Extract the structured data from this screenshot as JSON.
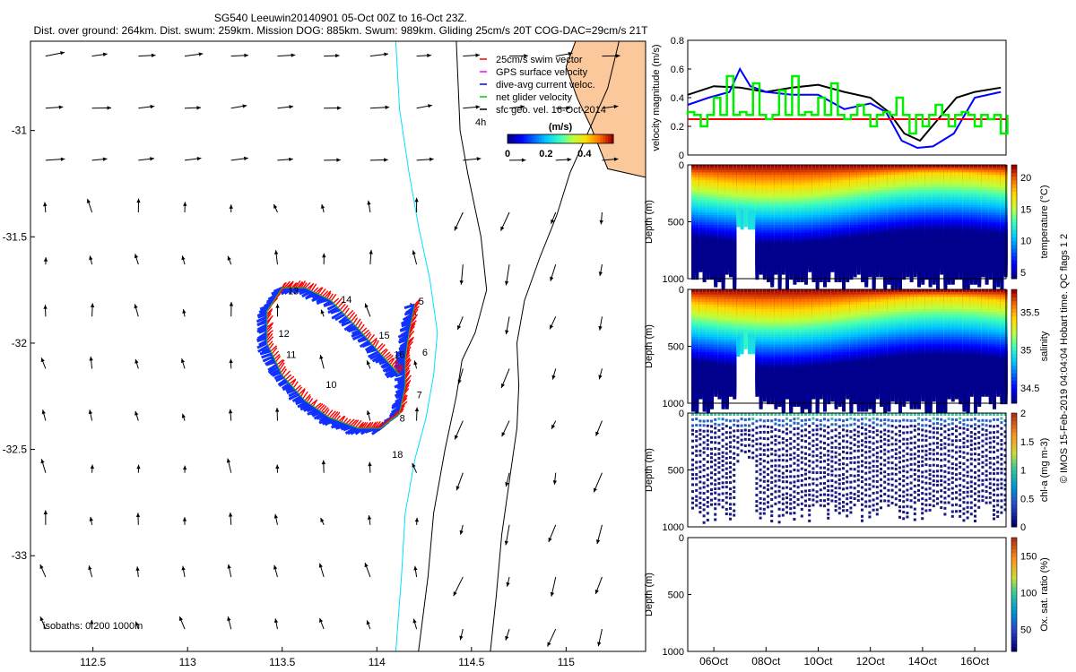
{
  "title": {
    "line1": "SG540 Leeuwin20140901 05-Oct 00Z to 16-Oct 23Z.",
    "line2": "Dist. over ground: 264km. Dist. swum: 259km. Mission DOG: 885km. Swum: 989km. Gliding 25cm/s 20T COG-DAC=29cm/s 21T"
  },
  "side_label": "© IMOS 15-Feb-2019 04:04:04 Hobart time. QC flags 1  2",
  "chart_data": [
    {
      "type": "map",
      "x_ticks": [
        112.5,
        113,
        113.5,
        114,
        114.5,
        115
      ],
      "y_ticks": [
        -31,
        -31.5,
        -32,
        -32.5,
        -33
      ],
      "xlim": [
        112.17,
        115.42
      ],
      "ylim": [
        -33.45,
        -30.58
      ],
      "legend": [
        "25cm/s swim vector",
        "GPS surface velocity",
        "dive-avg current veloc.",
        "net glider velocity",
        "sfc geo. vel. 16-Oct-2014"
      ],
      "legend_colors": [
        "#ff0000",
        "#ff00ff",
        "#0000ff",
        "#00cc00",
        "#000000"
      ],
      "legend_extra": "4h",
      "colorbar": {
        "label": "(m/s)",
        "ticks": [
          0,
          0.2,
          0.4
        ],
        "range": [
          0,
          0.55
        ]
      },
      "isobath_label": "isobaths: 0   200   1000m",
      "day_labels": [
        {
          "text": "5",
          "lon": 114.22,
          "lat": -31.82
        },
        {
          "text": "6",
          "lon": 114.24,
          "lat": -32.06
        },
        {
          "text": "7",
          "lon": 114.21,
          "lat": -32.26
        },
        {
          "text": "8",
          "lon": 114.12,
          "lat": -32.37
        },
        {
          "text": "10",
          "lon": 113.73,
          "lat": -32.21
        },
        {
          "text": "11",
          "lon": 113.52,
          "lat": -32.07
        },
        {
          "text": "12",
          "lon": 113.48,
          "lat": -31.97
        },
        {
          "text": "13",
          "lon": 113.53,
          "lat": -31.77
        },
        {
          "text": "14",
          "lon": 113.81,
          "lat": -31.81
        },
        {
          "text": "15",
          "lon": 114.01,
          "lat": -31.98
        },
        {
          "text": "16",
          "lon": 114.09,
          "lat": -32.07
        },
        {
          "text": "18",
          "lon": 114.08,
          "lat": -32.54
        }
      ],
      "track": [
        [
          114.2,
          -31.82
        ],
        [
          114.17,
          -31.95
        ],
        [
          114.15,
          -32.08
        ],
        [
          114.15,
          -32.2
        ],
        [
          114.12,
          -32.33
        ],
        [
          114.02,
          -32.4
        ],
        [
          113.9,
          -32.4
        ],
        [
          113.75,
          -32.35
        ],
        [
          113.62,
          -32.27
        ],
        [
          113.5,
          -32.15
        ],
        [
          113.42,
          -32.0
        ],
        [
          113.42,
          -31.85
        ],
        [
          113.5,
          -31.74
        ],
        [
          113.62,
          -31.74
        ],
        [
          113.76,
          -31.8
        ],
        [
          113.9,
          -31.93
        ],
        [
          114.02,
          -32.05
        ],
        [
          114.12,
          -32.15
        ]
      ],
      "coastline": [
        [
          114.6,
          -33.45
        ],
        [
          114.63,
          -33.2
        ],
        [
          114.66,
          -32.9
        ],
        [
          114.7,
          -32.65
        ],
        [
          114.74,
          -32.4
        ],
        [
          114.75,
          -32.2
        ],
        [
          114.74,
          -32.0
        ],
        [
          114.78,
          -31.8
        ],
        [
          114.86,
          -31.6
        ],
        [
          114.95,
          -31.4
        ],
        [
          115.02,
          -31.2
        ],
        [
          115.12,
          -31.0
        ],
        [
          115.22,
          -30.8
        ],
        [
          115.28,
          -30.58
        ]
      ],
      "land": [
        [
          115.05,
          -30.58
        ],
        [
          115.0,
          -30.7
        ],
        [
          115.06,
          -30.85
        ],
        [
          115.13,
          -30.98
        ],
        [
          115.22,
          -31.18
        ],
        [
          115.42,
          -31.22
        ],
        [
          115.42,
          -30.58
        ]
      ],
      "isobath_200": [
        [
          114.22,
          -33.45
        ],
        [
          114.27,
          -33.1
        ],
        [
          114.3,
          -32.8
        ],
        [
          114.36,
          -32.5
        ],
        [
          114.42,
          -32.25
        ],
        [
          114.45,
          -32.08
        ],
        [
          114.52,
          -31.95
        ],
        [
          114.58,
          -31.75
        ],
        [
          114.55,
          -31.5
        ],
        [
          114.48,
          -31.2
        ],
        [
          114.44,
          -31.0
        ],
        [
          114.42,
          -30.58
        ]
      ],
      "isobath_1000": [
        [
          114.1,
          -33.45
        ],
        [
          114.13,
          -33.1
        ],
        [
          114.15,
          -32.8
        ],
        [
          114.2,
          -32.55
        ],
        [
          114.26,
          -32.35
        ],
        [
          114.3,
          -32.15
        ],
        [
          114.32,
          -31.95
        ],
        [
          114.28,
          -31.7
        ],
        [
          114.22,
          -31.45
        ],
        [
          114.17,
          -31.2
        ],
        [
          114.12,
          -30.9
        ],
        [
          114.1,
          -30.58
        ]
      ]
    },
    {
      "type": "line",
      "ylabel": "velocity magnitude (m/s)",
      "ylim": [
        0,
        0.8
      ],
      "y_ticks": [
        0,
        0.2,
        0.4,
        0.6,
        0.8
      ],
      "xlim": [
        5,
        17.2
      ],
      "series": [
        {
          "color": "#000000",
          "x": [
            5,
            6,
            7,
            8,
            9,
            10,
            11,
            12,
            12.7,
            13.3,
            13.9,
            14.6,
            15.3,
            16,
            17
          ],
          "values": [
            0.42,
            0.48,
            0.47,
            0.44,
            0.47,
            0.49,
            0.44,
            0.4,
            0.3,
            0.15,
            0.1,
            0.25,
            0.4,
            0.44,
            0.47
          ]
        },
        {
          "color": "#0000ff",
          "x": [
            5,
            5.8,
            6.6,
            7.0,
            7.4,
            8,
            9,
            10,
            11,
            12,
            12.6,
            13.2,
            13.8,
            14.4,
            15.2,
            16,
            17
          ],
          "values": [
            0.35,
            0.4,
            0.44,
            0.6,
            0.48,
            0.44,
            0.42,
            0.42,
            0.32,
            0.36,
            0.3,
            0.1,
            0.05,
            0.06,
            0.15,
            0.4,
            0.44
          ]
        },
        {
          "color": "#ff0000",
          "x": [
            5,
            17.2
          ],
          "values": [
            0.25,
            0.25
          ]
        },
        {
          "color": "#00ee00",
          "x": [
            5,
            5.5,
            6,
            6.5,
            7,
            7.5,
            8,
            8.5,
            9,
            9.5,
            10,
            10.5,
            11,
            11.5,
            12,
            12.5,
            13,
            13.5,
            14,
            14.5,
            15,
            15.5,
            16,
            16.5,
            17
          ],
          "values": [
            0.3,
            0.2,
            0.4,
            0.55,
            0.3,
            0.5,
            0.25,
            0.45,
            0.55,
            0.3,
            0.4,
            0.5,
            0.25,
            0.35,
            0.2,
            0.3,
            0.4,
            0.15,
            0.2,
            0.35,
            0.2,
            0.3,
            0.2,
            0.25,
            0.15
          ]
        }
      ]
    },
    {
      "type": "heatmap",
      "ylabel": "Depth (m)",
      "ylim": [
        1000,
        0
      ],
      "y_ticks": [
        0,
        500,
        1000
      ],
      "colorbar": {
        "label": "temperature (°C)",
        "range": [
          4,
          22
        ],
        "ticks": [
          5,
          10,
          15,
          20
        ]
      }
    },
    {
      "type": "heatmap",
      "ylabel": "Depth (m)",
      "ylim": [
        1000,
        0
      ],
      "y_ticks": [
        0,
        500,
        1000
      ],
      "colorbar": {
        "label": "salinity",
        "range": [
          34.3,
          35.8
        ],
        "ticks": [
          34.5,
          35,
          35.5
        ]
      }
    },
    {
      "type": "heatmap",
      "ylabel": "Depth (m)",
      "ylim": [
        1000,
        0
      ],
      "y_ticks": [
        0,
        500,
        1000
      ],
      "colorbar": {
        "label": "chl-a (mg m-3)",
        "range": [
          0,
          2
        ],
        "ticks": [
          0,
          0.5,
          1,
          1.5,
          2
        ]
      }
    },
    {
      "type": "heatmap",
      "ylabel": "Depth (m)",
      "ylim": [
        1000,
        0
      ],
      "y_ticks": [
        0,
        500,
        1000
      ],
      "x_ticks": [
        "06Oct",
        "08Oct",
        "10Oct",
        "12Oct",
        "14Oct",
        "16Oct"
      ],
      "xlim": [
        5,
        17.2
      ],
      "colorbar": {
        "label": "Ox. sat. ratio (%)",
        "range": [
          20,
          175
        ],
        "ticks": [
          50,
          100,
          150
        ]
      }
    }
  ]
}
